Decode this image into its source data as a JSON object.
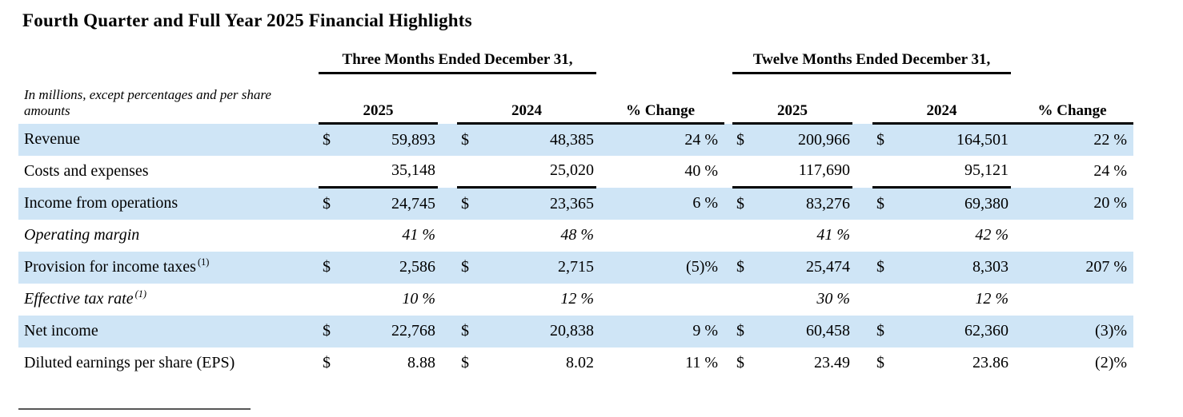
{
  "title": "Fourth Quarter and Full Year 2025 Financial Highlights",
  "colors": {
    "row_band": "#cfe5f6",
    "rule": "#000000"
  },
  "table": {
    "group_headers": {
      "three_months": "Three Months Ended December 31,",
      "twelve_months": "Twelve Months Ended December 31,"
    },
    "units_note": "In millions, except percentages and per share amounts",
    "col_headers": {
      "tm_2025": "2025",
      "tm_2024": "2024",
      "tm_change": "% Change",
      "fy_2025": "2025",
      "fy_2024": "2024",
      "fy_change": "% Change"
    },
    "rows": [
      {
        "label": "Revenue",
        "tm_2025_cur": "$",
        "tm_2025": "59,893",
        "tm_2024_cur": "$",
        "tm_2024": "48,385",
        "tm_change": "24 %",
        "fy_2025_cur": "$",
        "fy_2025": "200,966",
        "fy_2024_cur": "$",
        "fy_2024": "164,501",
        "fy_change": "22 %"
      },
      {
        "label": "Costs and expenses",
        "tm_2025_cur": "",
        "tm_2025": "35,148",
        "tm_2024_cur": "",
        "tm_2024": "25,020",
        "tm_change": "40 %",
        "fy_2025_cur": "",
        "fy_2025": "117,690",
        "fy_2024_cur": "",
        "fy_2024": "95,121",
        "fy_change": "24 %"
      },
      {
        "label": "Income from operations",
        "tm_2025_cur": "$",
        "tm_2025": "24,745",
        "tm_2024_cur": "$",
        "tm_2024": "23,365",
        "tm_change": "6 %",
        "fy_2025_cur": "$",
        "fy_2025": "83,276",
        "fy_2024_cur": "$",
        "fy_2024": "69,380",
        "fy_change": "20 %"
      },
      {
        "label": "Operating margin",
        "tm_2025_cur": "",
        "tm_2025": "41 %",
        "tm_2024_cur": "",
        "tm_2024": "48 %",
        "tm_change": "",
        "fy_2025_cur": "",
        "fy_2025": "41 %",
        "fy_2024_cur": "",
        "fy_2024": "42 %",
        "fy_change": ""
      },
      {
        "label": "Provision for income taxes",
        "sup": "(1)",
        "tm_2025_cur": "$",
        "tm_2025": "2,586",
        "tm_2024_cur": "$",
        "tm_2024": "2,715",
        "tm_change": "(5)%",
        "fy_2025_cur": "$",
        "fy_2025": "25,474",
        "fy_2024_cur": "$",
        "fy_2024": "8,303",
        "fy_change": "207 %"
      },
      {
        "label": "Effective tax rate",
        "sup": "(1)",
        "tm_2025_cur": "",
        "tm_2025": "10 %",
        "tm_2024_cur": "",
        "tm_2024": "12 %",
        "tm_change": "",
        "fy_2025_cur": "",
        "fy_2025": "30 %",
        "fy_2024_cur": "",
        "fy_2024": "12 %",
        "fy_change": ""
      },
      {
        "label": "Net income",
        "tm_2025_cur": "$",
        "tm_2025": "22,768",
        "tm_2024_cur": "$",
        "tm_2024": "20,838",
        "tm_change": "9 %",
        "fy_2025_cur": "$",
        "fy_2025": "60,458",
        "fy_2024_cur": "$",
        "fy_2024": "62,360",
        "fy_change": "(3)%"
      },
      {
        "label": "Diluted earnings per share (EPS)",
        "tm_2025_cur": "$",
        "tm_2025": "8.88",
        "tm_2024_cur": "$",
        "tm_2024": "8.02",
        "tm_change": "11 %",
        "fy_2025_cur": "$",
        "fy_2025": "23.49",
        "fy_2024_cur": "$",
        "fy_2024": "23.86",
        "fy_change": "(2)%"
      }
    ]
  }
}
